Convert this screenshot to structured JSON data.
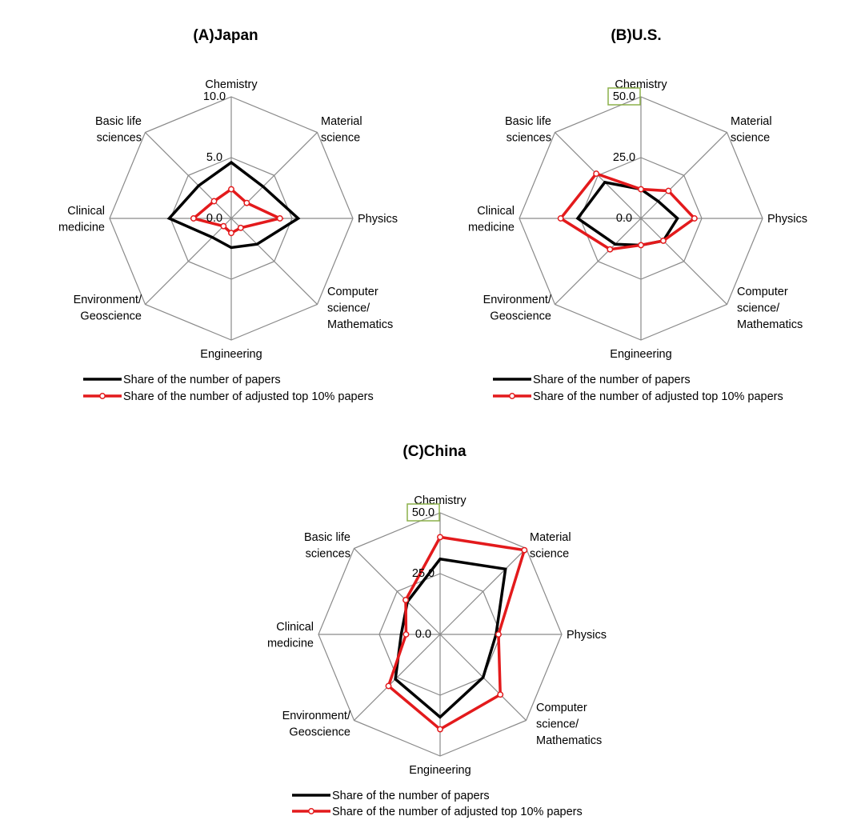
{
  "chart_data": [
    {
      "type": "radar",
      "title": "(A)Japan",
      "categories": [
        "Chemistry",
        "Material science",
        "Physics",
        "Computer science/ Mathematics",
        "Engineering",
        "Environment/ Geoscience",
        "Clinical medicine",
        "Basic life sciences"
      ],
      "category_lines": [
        [
          "Chemistry"
        ],
        [
          "Material",
          "science"
        ],
        [
          "Physics"
        ],
        [
          "Computer",
          "science/",
          "Mathematics"
        ],
        [
          "Engineering"
        ],
        [
          "Environment/",
          "Geoscience"
        ],
        [
          "Clinical",
          "medicine"
        ],
        [
          "Basic life",
          "sciences"
        ]
      ],
      "rmax": 10,
      "ticks": [
        {
          "value": 0,
          "label": "0.0"
        },
        {
          "value": 5,
          "label": "5.0"
        },
        {
          "value": 10,
          "label": "10.0"
        }
      ],
      "highlight_tick": null,
      "series": [
        {
          "name": "Share of the number of papers",
          "color": "#000000",
          "markers": false,
          "values": [
            4.6,
            3.7,
            5.5,
            3.0,
            2.4,
            2.2,
            5.1,
            3.8
          ]
        },
        {
          "name": "Share of the number of adjusted top 10% papers",
          "color": "#e31a1c",
          "markers": true,
          "values": [
            2.4,
            1.8,
            4.0,
            1.1,
            1.2,
            0.9,
            3.1,
            2.0
          ]
        }
      ]
    },
    {
      "type": "radar",
      "title": "(B)U.S.",
      "categories": [
        "Chemistry",
        "Material science",
        "Physics",
        "Computer science/ Mathematics",
        "Engineering",
        "Environment/ Geoscience",
        "Clinical medicine",
        "Basic life sciences"
      ],
      "category_lines": [
        [
          "Chemistry"
        ],
        [
          "Material",
          "science"
        ],
        [
          "Physics"
        ],
        [
          "Computer",
          "science/",
          "Mathematics"
        ],
        [
          "Engineering"
        ],
        [
          "Environment/",
          "Geoscience"
        ],
        [
          "Clinical",
          "medicine"
        ],
        [
          "Basic life",
          "sciences"
        ]
      ],
      "rmax": 50,
      "ticks": [
        {
          "value": 0,
          "label": "0.0"
        },
        {
          "value": 25,
          "label": "25.0"
        },
        {
          "value": 50,
          "label": "50.0"
        }
      ],
      "highlight_tick": 50,
      "series": [
        {
          "name": "Share of the number of papers",
          "color": "#000000",
          "markers": false,
          "values": [
            12,
            10,
            15,
            13,
            11,
            15,
            26,
            21
          ]
        },
        {
          "name": "Share of the number of adjusted top 10% papers",
          "color": "#e31a1c",
          "markers": true,
          "values": [
            12,
            16,
            22,
            13,
            11,
            18,
            33,
            26
          ]
        }
      ]
    },
    {
      "type": "radar",
      "title": "(C)China",
      "categories": [
        "Chemistry",
        "Material science",
        "Physics",
        "Computer science/ Mathematics",
        "Engineering",
        "Environment/ Geoscience",
        "Clinical medicine",
        "Basic life sciences"
      ],
      "category_lines": [
        [
          "Chemistry"
        ],
        [
          "Material",
          "science"
        ],
        [
          "Physics"
        ],
        [
          "Computer",
          "science/",
          "Mathematics"
        ],
        [
          "Engineering"
        ],
        [
          "Environment/",
          "Geoscience"
        ],
        [
          "Clinical",
          "medicine"
        ],
        [
          "Basic life",
          "sciences"
        ]
      ],
      "rmax": 50,
      "ticks": [
        {
          "value": 0,
          "label": "0.0"
        },
        {
          "value": 25,
          "label": "25.0"
        },
        {
          "value": 50,
          "label": "50.0"
        }
      ],
      "highlight_tick": 50,
      "series": [
        {
          "name": "Share of the number of papers",
          "color": "#000000",
          "markers": false,
          "values": [
            31,
            38,
            23,
            25,
            34,
            26,
            16,
            19
          ]
        },
        {
          "name": "Share of the number of adjusted top 10% papers",
          "color": "#e31a1c",
          "markers": true,
          "values": [
            40,
            49,
            24,
            35,
            39,
            30,
            14,
            20
          ]
        }
      ]
    }
  ]
}
